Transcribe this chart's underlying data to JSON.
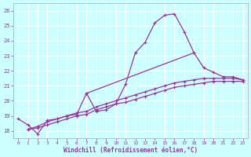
{
  "curve1_x": [
    0,
    1,
    2,
    3,
    4,
    5,
    6,
    7,
    8,
    9,
    10,
    11,
    12,
    13,
    14,
    15,
    16,
    17,
    18
  ],
  "curve1_y": [
    18.8,
    18.4,
    17.8,
    18.7,
    18.8,
    19.0,
    19.1,
    20.5,
    19.3,
    19.4,
    19.8,
    21.1,
    23.2,
    23.9,
    25.2,
    25.7,
    25.8,
    24.6,
    23.2
  ],
  "curve2_x": [
    7,
    18,
    19,
    20,
    21,
    22,
    23
  ],
  "curve2_y": [
    20.5,
    23.2,
    22.2,
    21.9,
    21.6,
    21.6,
    21.4
  ],
  "curve3_x": [
    1,
    2,
    3,
    4,
    5,
    6,
    7,
    8,
    9,
    10,
    11,
    12,
    13,
    14,
    15,
    16,
    17,
    18,
    19,
    20,
    21,
    22,
    23
  ],
  "curve3_y": [
    18.1,
    18.3,
    18.6,
    18.8,
    19.0,
    19.2,
    19.3,
    19.6,
    19.8,
    20.0,
    20.2,
    20.4,
    20.6,
    20.8,
    21.0,
    21.2,
    21.3,
    21.4,
    21.5,
    21.5,
    21.5,
    21.5,
    21.4
  ],
  "curve4_x": [
    1,
    2,
    3,
    4,
    5,
    6,
    7,
    8,
    9,
    10,
    11,
    12,
    13,
    14,
    15,
    16,
    17,
    18,
    19,
    20,
    21,
    22,
    23
  ],
  "curve4_y": [
    18.1,
    18.2,
    18.4,
    18.6,
    18.8,
    19.0,
    19.1,
    19.4,
    19.6,
    19.8,
    19.9,
    20.1,
    20.3,
    20.5,
    20.7,
    20.9,
    21.0,
    21.1,
    21.2,
    21.3,
    21.3,
    21.3,
    21.3
  ],
  "ylim": [
    17.5,
    26.5
  ],
  "xlim": [
    -0.5,
    23.5
  ],
  "yticks": [
    18,
    19,
    20,
    21,
    22,
    23,
    24,
    25,
    26
  ],
  "xticks": [
    0,
    1,
    2,
    3,
    4,
    5,
    6,
    7,
    8,
    9,
    10,
    11,
    12,
    13,
    14,
    15,
    16,
    17,
    18,
    19,
    20,
    21,
    22,
    23
  ],
  "xlabel": "Windchill (Refroidissement éolien,°C)",
  "line_color": "#993399",
  "bg_color": "#ccffff",
  "grid_color": "#ffffff",
  "fig_w": 3.2,
  "fig_h": 2.0,
  "dpi": 100
}
